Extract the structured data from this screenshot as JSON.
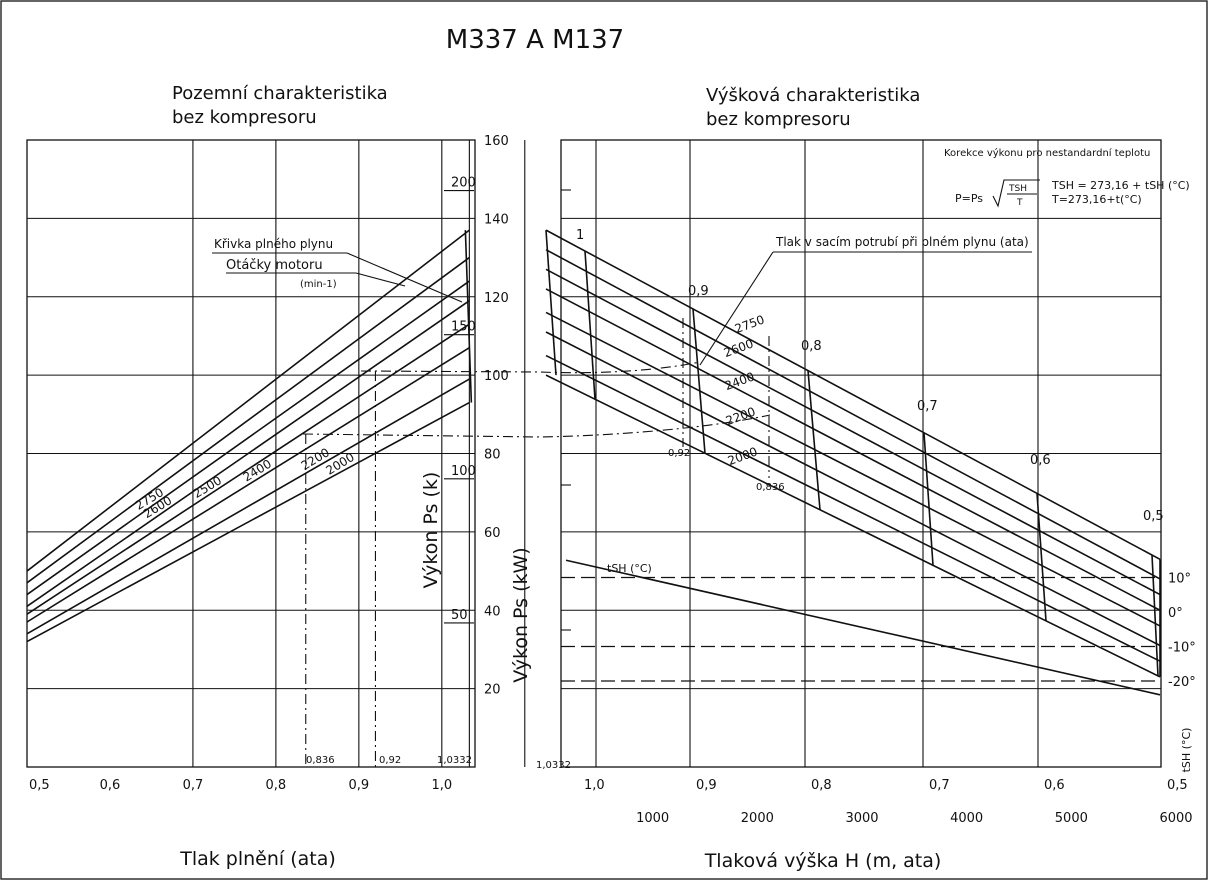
{
  "title": "M337 A M137",
  "chart_data": [
    {
      "type": "line",
      "heading": [
        "Pozemní charakteristika",
        "bez kompresoru"
      ],
      "xlabel": "Tlak plnění (ata)",
      "x_ticks": [
        "0,5",
        "0,6",
        "0,7",
        "0,8",
        "0,9",
        "1,0"
      ],
      "xlim": [
        0.5,
        1.04
      ],
      "ylim_kW": [
        0,
        160
      ],
      "ylabel_kW": "Výkon Ps (kW)",
      "ylabel_hp": "Výkon Ps (k)",
      "kW_ticks": [
        "20",
        "40",
        "60",
        "80",
        "100",
        "120",
        "140",
        "160"
      ],
      "hp_ticks": [
        "50",
        "100",
        "150",
        "200"
      ],
      "x_markers": [
        "0,836",
        "0,92",
        "1,0332"
      ],
      "legend_line1": "Křivka plného plynu",
      "legend_line2": "Otáčky motoru",
      "legend_unit": "(min-1)",
      "series": [
        {
          "rpm": "2000",
          "x": [
            0.5,
            1.0332
          ],
          "y": [
            32,
            93
          ]
        },
        {
          "rpm": "2200",
          "x": [
            0.5,
            1.0332
          ],
          "y": [
            34,
            99
          ]
        },
        {
          "rpm": "2400",
          "x": [
            0.5,
            1.0332
          ],
          "y": [
            37,
            107
          ]
        },
        {
          "rpm": "2500",
          "x": [
            0.5,
            1.0332
          ],
          "y": [
            39,
            113
          ]
        },
        {
          "rpm": "2600",
          "x": [
            0.5,
            1.0332
          ],
          "y": [
            41,
            119
          ]
        },
        {
          "rpm": "2750",
          "x": [
            0.5,
            1.0332
          ],
          "y": [
            44,
            124
          ]
        },
        {
          "rpm": "",
          "x": [
            0.5,
            1.0332
          ],
          "y": [
            47,
            130
          ]
        },
        {
          "rpm": "",
          "x": [
            0.5,
            1.0332
          ],
          "y": [
            50,
            137
          ]
        }
      ]
    },
    {
      "type": "line",
      "heading": [
        "Výšková charakteristika",
        "bez kompresoru"
      ],
      "xlabel": "Tlaková výška H (m, ata)",
      "x_ticks_m": [
        "1000",
        "2000",
        "3000",
        "4000",
        "5000",
        "6000"
      ],
      "x_ticks_ata": [
        "1,0",
        "0,9",
        "0,8",
        "0,7",
        "0,6",
        "0,5"
      ],
      "x_start_label": "1,0332",
      "xlim_m": [
        0,
        6000
      ],
      "ylim_kW": [
        0,
        160
      ],
      "pressure_label": "Tlak v sacím potrubí při plném plynu (ata)",
      "pressure_values": [
        "1",
        "0,9",
        "0,8",
        "0,7",
        "0,6",
        "0,5"
      ],
      "pressure_values_lower": [
        "0,92",
        "0,836"
      ],
      "rpm_labels": [
        "2750",
        "2600",
        "2400",
        "2200",
        "2000"
      ],
      "correction_title": "Korekce výkonu pro nestandardní teplotu",
      "formula_left": "P=Ps",
      "formula_num": "TSH",
      "formula_den": "T",
      "formula_r1": "TSH = 273,16 + tSH (°C)",
      "formula_r2": "T=273,16+t(°C)",
      "temp_series_label": "tSH (°C)",
      "temp_axis_label": "tSH (°C)",
      "temp_ticks": [
        "10°",
        "0°",
        "-10°",
        "-20°"
      ],
      "series": [
        {
          "name": "2000",
          "x": [
            0,
            6000
          ],
          "y": [
            100,
            23
          ]
        },
        {
          "name": "",
          "x": [
            0,
            6000
          ],
          "y": [
            105,
            27
          ]
        },
        {
          "name": "2200",
          "x": [
            0,
            6000
          ],
          "y": [
            111,
            31
          ]
        },
        {
          "name": "",
          "x": [
            0,
            6000
          ],
          "y": [
            116,
            36
          ]
        },
        {
          "name": "2400",
          "x": [
            0,
            6000
          ],
          "y": [
            122,
            40
          ]
        },
        {
          "name": "2600",
          "x": [
            0,
            6000
          ],
          "y": [
            127,
            44
          ]
        },
        {
          "name": "",
          "x": [
            0,
            6000
          ],
          "y": [
            132,
            48
          ]
        },
        {
          "name": "2750",
          "x": [
            0,
            6000
          ],
          "y": [
            137,
            53
          ]
        }
      ],
      "temperature_line": {
        "x": [
          0,
          6000
        ],
        "y_degC": [
          15,
          -24
        ]
      }
    }
  ]
}
